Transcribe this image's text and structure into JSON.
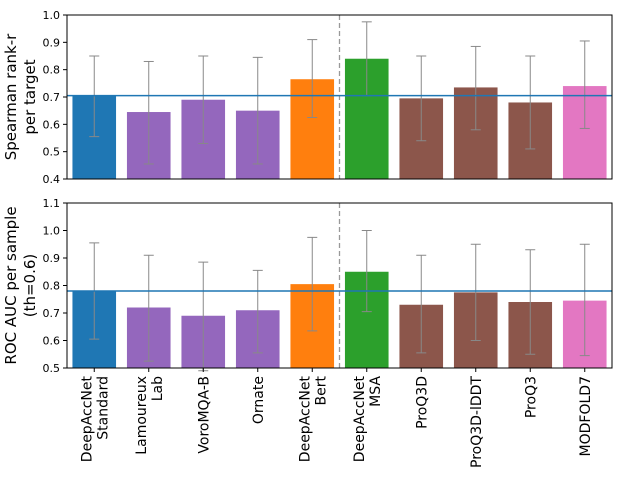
{
  "chart_data": [
    {
      "type": "bar",
      "ylabel": "Spearman rank-r\nper target",
      "ylim": [
        0.4,
        1.0
      ],
      "yticks": [
        "0.4",
        "0.5",
        "0.6",
        "0.7",
        "0.8",
        "0.9",
        "1.0"
      ],
      "reference_line": 0.705,
      "values": [
        0.705,
        0.645,
        0.69,
        0.65,
        0.765,
        0.84,
        0.695,
        0.735,
        0.68,
        0.74
      ],
      "err_low": [
        0.555,
        0.455,
        0.53,
        0.455,
        0.625,
        0.705,
        0.54,
        0.58,
        0.51,
        0.585
      ],
      "err_high": [
        0.85,
        0.83,
        0.85,
        0.845,
        0.91,
        0.975,
        0.85,
        0.885,
        0.85,
        0.905
      ]
    },
    {
      "type": "bar",
      "ylabel": "ROC AUC per sample\n(th=0.6)",
      "ylim": [
        0.5,
        1.1
      ],
      "yticks": [
        "0.5",
        "0.6",
        "0.7",
        "0.8",
        "0.9",
        "1.0",
        "1.1"
      ],
      "reference_line": 0.78,
      "values": [
        0.78,
        0.72,
        0.69,
        0.71,
        0.805,
        0.85,
        0.73,
        0.775,
        0.74,
        0.745
      ],
      "err_low": [
        0.605,
        0.525,
        0.49,
        0.555,
        0.635,
        0.705,
        0.555,
        0.6,
        0.55,
        0.545
      ],
      "err_high": [
        0.955,
        0.91,
        0.885,
        0.855,
        0.975,
        1.0,
        0.91,
        0.95,
        0.93,
        0.95
      ]
    }
  ],
  "categories": [
    "DeepAccNet\nStandard",
    "Lamoureux\nLab",
    "VoroMQA-B",
    "Ornate",
    "DeepAccNet\nBert",
    "DeepAccNet\nMSA",
    "ProQ3D",
    "ProQ3D-lDDT",
    "ProQ3",
    "MODFOLD7"
  ],
  "colors": [
    "#1f77b4",
    "#9467bd",
    "#9467bd",
    "#9467bd",
    "#ff7f0e",
    "#2ca02c",
    "#8c564b",
    "#8c564b",
    "#8c564b",
    "#e377c2"
  ],
  "reference_line_color": "#1f77b4",
  "errorbar_color": "#888888",
  "divider_after_index": 4
}
